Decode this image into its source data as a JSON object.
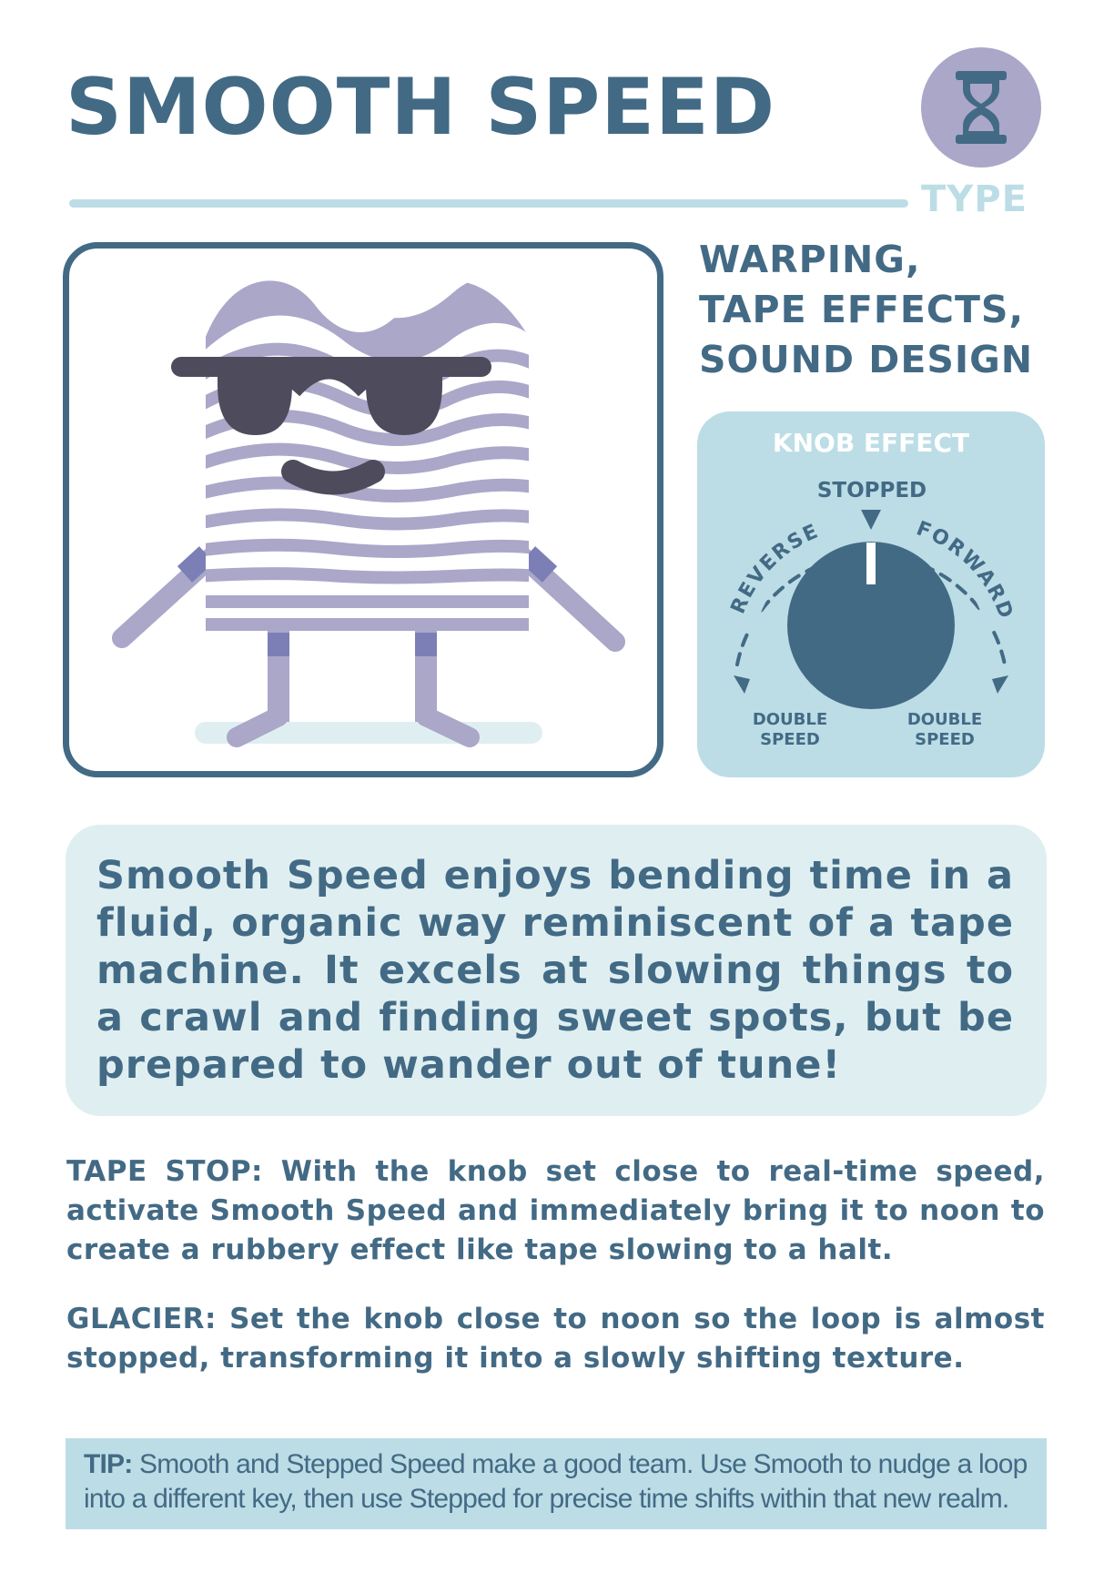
{
  "card": {
    "title": "SMOOTH SPEED",
    "type_label": "TYPE",
    "type_icon": "hourglass-icon",
    "categories": [
      "WARPING,",
      "TAPE EFFECTS,",
      "SOUND DESIGN"
    ]
  },
  "knob_effect": {
    "title": "KNOB EFFECT",
    "top_label": "STOPPED",
    "left_arc_label": "REVERSE",
    "right_arc_label": "FORWARD",
    "bottom_left_label": [
      "DOUBLE",
      "SPEED"
    ],
    "bottom_right_label": [
      "DOUBLE",
      "SPEED"
    ]
  },
  "description": "Smooth Speed enjoys bending time in a fluid, organic way reminiscent of a tape machine.  It excels at slowing things to a crawl and finding sweet spots, but be prepared to wander out of tune!",
  "techniques": [
    {
      "name": "TAPE STOP:",
      "text": " With the knob set close to real-time speed, activate Smooth Speed and immediately bring it to noon to create a rubbery effect like tape slowing to a halt."
    },
    {
      "name": "GLACIER:",
      "text": " Set the knob close to noon so the loop is almost stopped, transforming it into a slowly shifting texture."
    }
  ],
  "tip": {
    "label": "TIP:",
    "text": " Smooth and Stepped Speed make a good team. Use Smooth to nudge a loop into a different key, then use Stepped for precise time shifts within that new realm."
  },
  "colors": {
    "primary": "#436a85",
    "light_blue": "#bcdde6",
    "pale_blue": "#dfeff1",
    "lavender": "#aaa7c9",
    "dark_glasses": "#4e4c5c"
  }
}
